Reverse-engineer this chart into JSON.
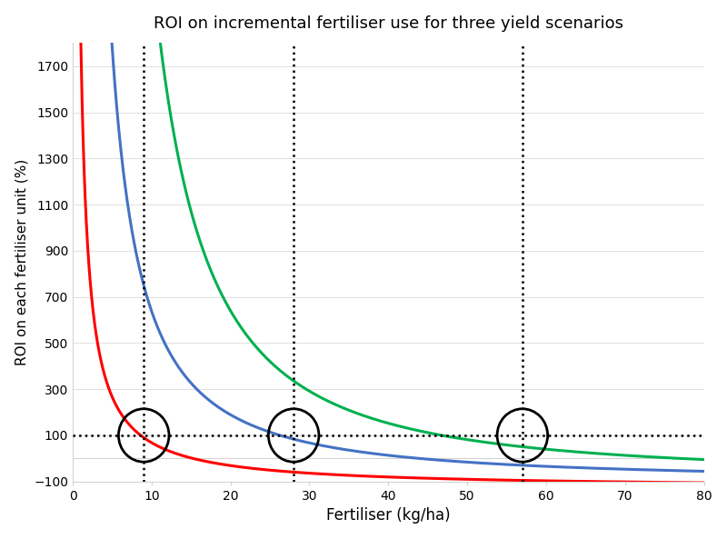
{
  "title": "ROI on incremental fertiliser use for three yield scenarios",
  "xlabel": "Fertiliser (kg/ha)",
  "ylabel": "ROI on each fertiliser unit (%)",
  "xlim": [
    0,
    80
  ],
  "ylim": [
    -100,
    1800
  ],
  "yticks": [
    -100,
    100,
    300,
    500,
    700,
    900,
    1100,
    1300,
    1500,
    1700
  ],
  "xticks": [
    0,
    10,
    20,
    30,
    40,
    50,
    60,
    70,
    80
  ],
  "curves": [
    {
      "A": 1980,
      "b": 1.0,
      "C": -130,
      "color": "#FF0000"
    },
    {
      "A": 16500,
      "b": 1.35,
      "C": -100,
      "color": "#4472C4"
    },
    {
      "A": 95000,
      "b": 1.63,
      "C": -80,
      "color": "#00B050"
    }
  ],
  "hline_y": 100,
  "vline_x": [
    9,
    28,
    57
  ],
  "circle_centers": [
    [
      9,
      100
    ],
    [
      28,
      100
    ],
    [
      57,
      100
    ]
  ],
  "circle_radius_x": 3.2,
  "circle_radius_y": 115,
  "line_width": 2.2,
  "bg_color": "#FFFFFF",
  "title_fontsize": 13,
  "xlabel_fontsize": 12,
  "ylabel_fontsize": 11
}
